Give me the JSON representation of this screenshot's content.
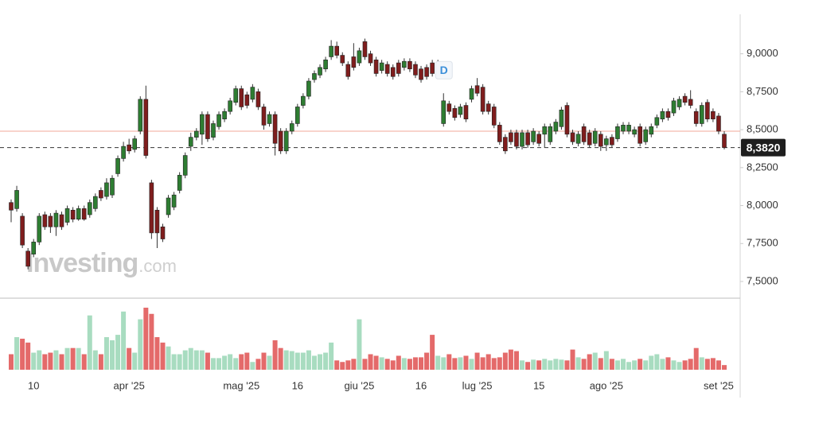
{
  "chart_data": {
    "type": "candlestick",
    "categories": [
      null,
      null,
      null,
      null,
      "10",
      null,
      null,
      null,
      null,
      null,
      null,
      null,
      null,
      null,
      null,
      null,
      null,
      null,
      null,
      null,
      null,
      "apr '25",
      null,
      null,
      null,
      null,
      null,
      null,
      null,
      null,
      null,
      null,
      null,
      null,
      null,
      null,
      null,
      null,
      null,
      null,
      null,
      "mag '25",
      null,
      null,
      null,
      null,
      null,
      null,
      null,
      null,
      null,
      "16",
      null,
      null,
      null,
      null,
      null,
      null,
      null,
      null,
      null,
      null,
      "giu '25",
      null,
      null,
      null,
      null,
      null,
      null,
      null,
      null,
      null,
      null,
      "16",
      null,
      null,
      null,
      null,
      null,
      null,
      null,
      null,
      null,
      "lug '25",
      null,
      null,
      null,
      null,
      null,
      null,
      null,
      null,
      null,
      null,
      "15",
      null,
      null,
      null,
      null,
      null,
      null,
      null,
      null,
      null,
      null,
      null,
      "ago '25",
      null,
      null,
      null,
      null,
      null,
      null,
      null,
      null,
      null,
      null,
      null,
      null,
      null,
      null,
      null,
      null,
      null,
      null,
      null,
      "set '25",
      null
    ],
    "open": [
      8.02,
      7.98,
      7.93,
      7.7,
      7.68,
      7.76,
      7.94,
      7.93,
      7.86,
      7.94,
      7.89,
      7.97,
      7.91,
      7.98,
      7.94,
      7.98,
      8.1,
      8.06,
      8.07,
      8.21,
      8.31,
      8.4,
      8.37,
      8.49,
      8.7,
      8.15,
      7.97,
      7.86,
      7.94,
      7.99,
      8.1,
      8.2,
      8.39,
      8.45,
      8.47,
      8.6,
      8.45,
      8.52,
      8.57,
      8.62,
      8.68,
      8.77,
      8.73,
      8.7,
      8.75,
      8.65,
      8.54,
      8.6,
      8.49,
      8.36,
      8.49,
      8.54,
      8.66,
      8.72,
      8.83,
      8.86,
      8.9,
      8.98,
      9.05,
      8.99,
      8.93,
      8.98,
      8.94,
      9.08,
      9.0,
      8.96,
      8.89,
      8.93,
      8.91,
      8.94,
      8.91,
      8.95,
      8.93,
      8.9,
      8.91,
      8.94,
      8.9,
      8.54,
      8.67,
      8.64,
      8.6,
      8.66,
      8.7,
      8.79,
      8.78,
      8.67,
      8.65,
      8.53,
      8.45,
      8.48,
      8.48,
      8.39,
      8.48,
      8.42,
      8.47,
      8.47,
      8.42,
      8.49,
      8.52,
      8.66,
      8.48,
      8.41,
      8.52,
      8.48,
      8.41,
      8.47,
      8.4,
      8.45,
      8.44,
      8.49,
      8.49,
      8.47,
      8.52,
      8.42,
      8.47,
      8.53,
      8.57,
      8.62,
      8.61,
      8.65,
      8.72,
      8.7,
      8.62,
      8.54,
      8.68,
      8.62,
      8.59,
      8.47
    ],
    "high": [
      8.04,
      8.13,
      7.95,
      7.72,
      7.78,
      7.95,
      7.96,
      7.95,
      7.97,
      7.96,
      8.0,
      7.99,
      8.0,
      8.0,
      8.04,
      8.08,
      8.12,
      8.18,
      8.2,
      8.33,
      8.42,
      8.44,
      8.46,
      8.72,
      8.79,
      8.17,
      7.99,
      7.88,
      8.07,
      8.09,
      8.22,
      8.35,
      8.48,
      8.51,
      8.62,
      8.62,
      8.56,
      8.62,
      8.64,
      8.71,
      8.79,
      8.79,
      8.75,
      8.8,
      8.77,
      8.67,
      8.62,
      8.62,
      8.51,
      8.51,
      8.56,
      8.67,
      8.74,
      8.84,
      8.89,
      8.93,
      8.98,
      9.09,
      9.08,
      9.01,
      8.95,
      9.07,
      9.04,
      9.1,
      9.02,
      8.98,
      8.96,
      8.95,
      8.93,
      8.96,
      8.97,
      8.97,
      8.95,
      8.92,
      8.93,
      8.96,
      8.96,
      8.74,
      8.69,
      8.66,
      8.67,
      8.68,
      8.79,
      8.84,
      8.8,
      8.69,
      8.67,
      8.55,
      8.47,
      8.5,
      8.5,
      8.5,
      8.5,
      8.51,
      8.49,
      8.54,
      8.54,
      8.57,
      8.65,
      8.68,
      8.5,
      8.49,
      8.54,
      8.5,
      8.51,
      8.49,
      8.46,
      8.47,
      8.54,
      8.55,
      8.55,
      8.52,
      8.54,
      8.52,
      8.54,
      8.6,
      8.64,
      8.64,
      8.71,
      8.72,
      8.74,
      8.76,
      8.64,
      8.68,
      8.7,
      8.64,
      8.61,
      8.49
    ],
    "low": [
      7.89,
      7.96,
      7.72,
      7.58,
      7.66,
      7.74,
      7.84,
      7.82,
      7.8,
      7.84,
      7.87,
      7.89,
      7.9,
      7.9,
      7.92,
      7.96,
      8.03,
      8.04,
      8.05,
      8.19,
      8.29,
      8.34,
      8.35,
      8.47,
      8.31,
      7.78,
      7.72,
      7.76,
      7.92,
      7.97,
      8.08,
      8.18,
      8.36,
      8.43,
      8.4,
      8.42,
      8.43,
      8.5,
      8.55,
      8.6,
      8.66,
      8.63,
      8.64,
      8.68,
      8.63,
      8.5,
      8.52,
      8.33,
      8.34,
      8.34,
      8.47,
      8.52,
      8.64,
      8.7,
      8.81,
      8.84,
      8.88,
      8.96,
      8.97,
      8.92,
      8.83,
      8.89,
      8.92,
      8.96,
      8.92,
      8.85,
      8.87,
      8.85,
      8.83,
      8.85,
      8.89,
      8.88,
      8.84,
      8.81,
      8.83,
      8.85,
      8.88,
      8.52,
      8.6,
      8.56,
      8.58,
      8.55,
      8.68,
      8.72,
      8.6,
      8.6,
      8.51,
      8.4,
      8.34,
      8.4,
      8.37,
      8.37,
      8.38,
      8.4,
      8.39,
      8.38,
      8.4,
      8.47,
      8.5,
      8.45,
      8.4,
      8.39,
      8.4,
      8.38,
      8.39,
      8.36,
      8.36,
      8.38,
      8.42,
      8.47,
      8.47,
      8.45,
      8.39,
      8.4,
      8.45,
      8.51,
      8.55,
      8.56,
      8.59,
      8.63,
      8.66,
      8.64,
      8.52,
      8.52,
      8.55,
      8.55,
      8.47,
      8.37
    ],
    "close": [
      7.97,
      8.1,
      7.74,
      7.6,
      7.76,
      7.93,
      7.86,
      7.86,
      7.95,
      7.86,
      7.98,
      7.91,
      7.98,
      7.91,
      8.02,
      8.06,
      8.05,
      8.15,
      8.18,
      8.31,
      8.39,
      8.36,
      8.44,
      8.7,
      8.33,
      7.82,
      7.82,
      7.78,
      8.05,
      8.07,
      8.2,
      8.33,
      8.45,
      8.49,
      8.6,
      8.44,
      8.54,
      8.6,
      8.62,
      8.69,
      8.77,
      8.65,
      8.66,
      8.78,
      8.65,
      8.53,
      8.6,
      8.41,
      8.36,
      8.49,
      8.54,
      8.65,
      8.72,
      8.82,
      8.87,
      8.91,
      8.96,
      9.05,
      8.99,
      8.94,
      8.85,
      8.91,
      9.02,
      8.98,
      8.94,
      8.87,
      8.94,
      8.87,
      8.85,
      8.87,
      8.95,
      8.9,
      8.86,
      8.83,
      8.85,
      8.87,
      8.94,
      8.69,
      8.62,
      8.58,
      8.65,
      8.57,
      8.77,
      8.74,
      8.62,
      8.62,
      8.53,
      8.42,
      8.36,
      8.42,
      8.39,
      8.48,
      8.4,
      8.49,
      8.41,
      8.52,
      8.52,
      8.55,
      8.63,
      8.47,
      8.42,
      8.47,
      8.42,
      8.4,
      8.49,
      8.39,
      8.44,
      8.4,
      8.52,
      8.53,
      8.53,
      8.5,
      8.41,
      8.5,
      8.52,
      8.58,
      8.62,
      8.58,
      8.69,
      8.7,
      8.68,
      8.66,
      8.54,
      8.66,
      8.57,
      8.57,
      8.49,
      8.382
    ],
    "volume": [
      20,
      42,
      40,
      35,
      22,
      25,
      20,
      22,
      25,
      20,
      28,
      28,
      28,
      20,
      70,
      25,
      20,
      42,
      38,
      45,
      75,
      28,
      22,
      65,
      80,
      72,
      42,
      35,
      30,
      20,
      20,
      25,
      28,
      25,
      25,
      22,
      15,
      15,
      18,
      20,
      15,
      20,
      22,
      10,
      14,
      22,
      18,
      38,
      28,
      25,
      24,
      22,
      22,
      25,
      18,
      20,
      22,
      35,
      12,
      10,
      12,
      14,
      65,
      14,
      20,
      18,
      16,
      14,
      12,
      18,
      15,
      14,
      16,
      16,
      22,
      45,
      18,
      16,
      20,
      15,
      16,
      18,
      14,
      22,
      16,
      20,
      15,
      16,
      22,
      26,
      24,
      12,
      10,
      13,
      12,
      14,
      12,
      14,
      13,
      12,
      26,
      16,
      14,
      20,
      22,
      15,
      24,
      14,
      12,
      14,
      10,
      12,
      14,
      12,
      18,
      20,
      14,
      16,
      12,
      10,
      12,
      14,
      28,
      16,
      14,
      15,
      12,
      6
    ],
    "ylim": [
      7.39,
      9.26
    ],
    "yticks": [
      {
        "value": 7.5,
        "label": "7,5000"
      },
      {
        "value": 7.75,
        "label": "7,7500"
      },
      {
        "value": 8.0,
        "label": "8,0000"
      },
      {
        "value": 8.25,
        "label": "8,2500"
      },
      {
        "value": 8.5,
        "label": "8,5000"
      },
      {
        "value": 8.75,
        "label": "8,7500"
      },
      {
        "value": 9.0,
        "label": "9,0000"
      }
    ],
    "volume_lim": [
      0,
      82
    ],
    "grid": false,
    "up_color": "#2e7d32",
    "down_color": "#7f1d1d",
    "volume_up_color": "#a8dcc0",
    "volume_down_color": "#e46a6a",
    "last_price": {
      "value": 8.382,
      "label": "8,3820"
    },
    "reference_line": 8.49,
    "events": [
      {
        "label": "D",
        "index": 77
      }
    ],
    "watermark": {
      "brand": "Investing",
      "suffix": ".com"
    }
  }
}
